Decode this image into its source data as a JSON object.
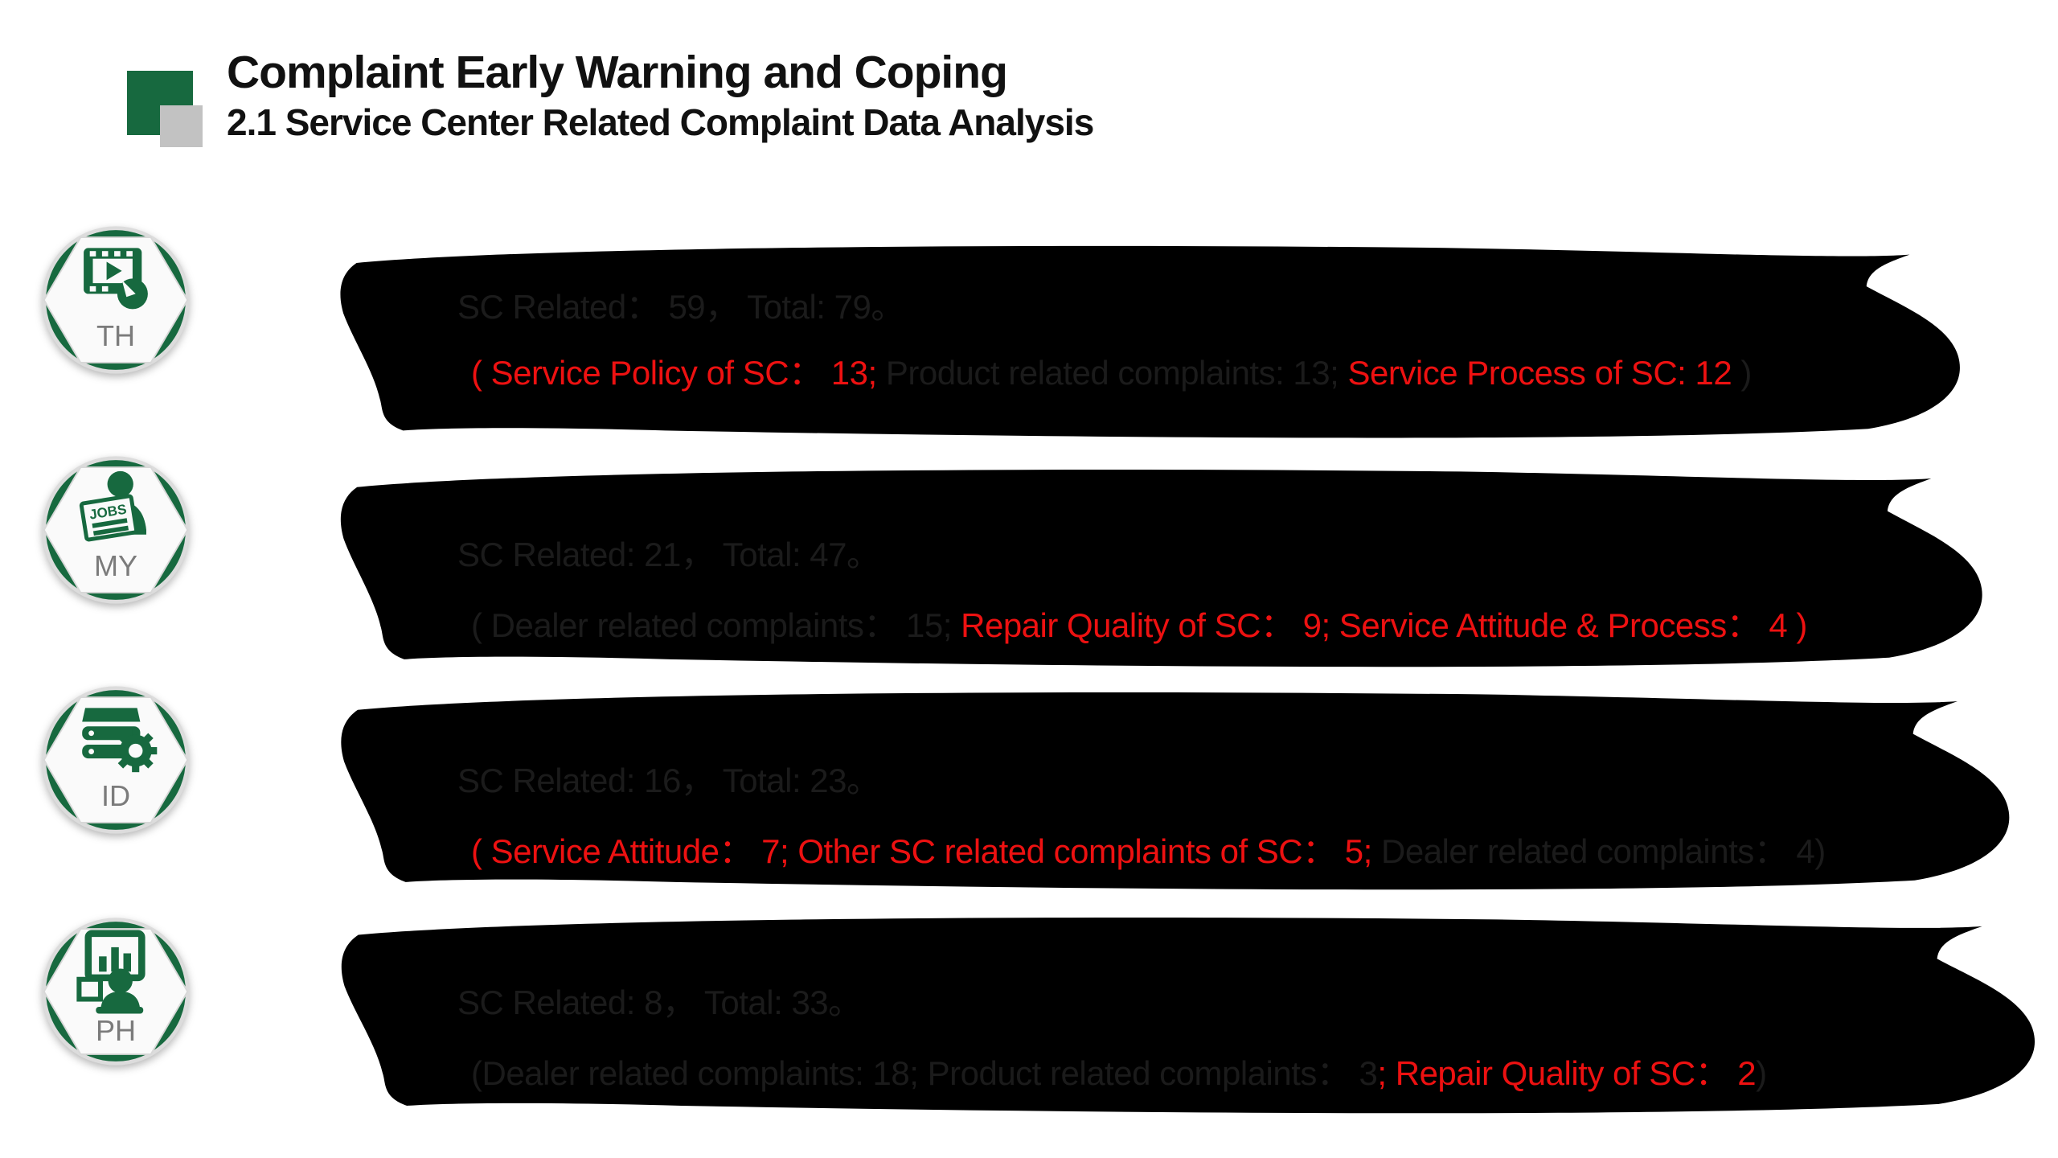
{
  "header": {
    "title": "Complaint Early Warning and Coping",
    "subtitle": "2.1 Service Center Related Complaint Data Analysis"
  },
  "colors": {
    "accent_green": "#17693F",
    "alert_red": "#ED1111",
    "text_black": "#1B1B1B",
    "label_gray": "#7B7B7B",
    "deco_gray": "#C2C2C2"
  },
  "badges": [
    {
      "code": "TH",
      "icon": "video-click-icon"
    },
    {
      "code": "MY",
      "icon": "jobs-person-icon",
      "mini_label": "JOBS"
    },
    {
      "code": "ID",
      "icon": "server-gear-icon"
    },
    {
      "code": "PH",
      "icon": "presentation-person-icon"
    }
  ],
  "bubbles": [
    {
      "country": "TH",
      "line1": "SC Related： 59， Total: 79。",
      "line2": [
        {
          "text": "( Service Policy of SC： 13; ",
          "color": "red"
        },
        {
          "text": "Product related complaints: 13;  ",
          "color": "black"
        },
        {
          "text": "Service Process of SC: 12",
          "color": "red"
        },
        {
          "text": " )",
          "color": "black"
        }
      ]
    },
    {
      "country": "MY",
      "line1": "SC Related:  21， Total: 47。",
      "line2": [
        {
          "text": "( Dealer related complaints： 15;  ",
          "color": "black"
        },
        {
          "text": "Repair Quality of SC： 9;  Service Attitude & Process： 4 )",
          "color": "red"
        }
      ]
    },
    {
      "country": "ID",
      "line1": "SC Related:  16， Total: 23。",
      "line2": [
        {
          "text": "( Service Attitude： 7;  Other SC related complaints of SC： 5;  ",
          "color": "red"
        },
        {
          "text": "Dealer related complaints： 4)",
          "color": "black"
        }
      ]
    },
    {
      "country": "PH",
      "line1": "SC Related:  8， Total: 33。",
      "line2": [
        {
          "text": "(Dealer related complaints: 18;  Product related complaints： 3",
          "color": "black"
        },
        {
          "text": ";  Repair Quality of SC： 2",
          "color": "red"
        },
        {
          "text": ")",
          "color": "black"
        }
      ]
    }
  ]
}
